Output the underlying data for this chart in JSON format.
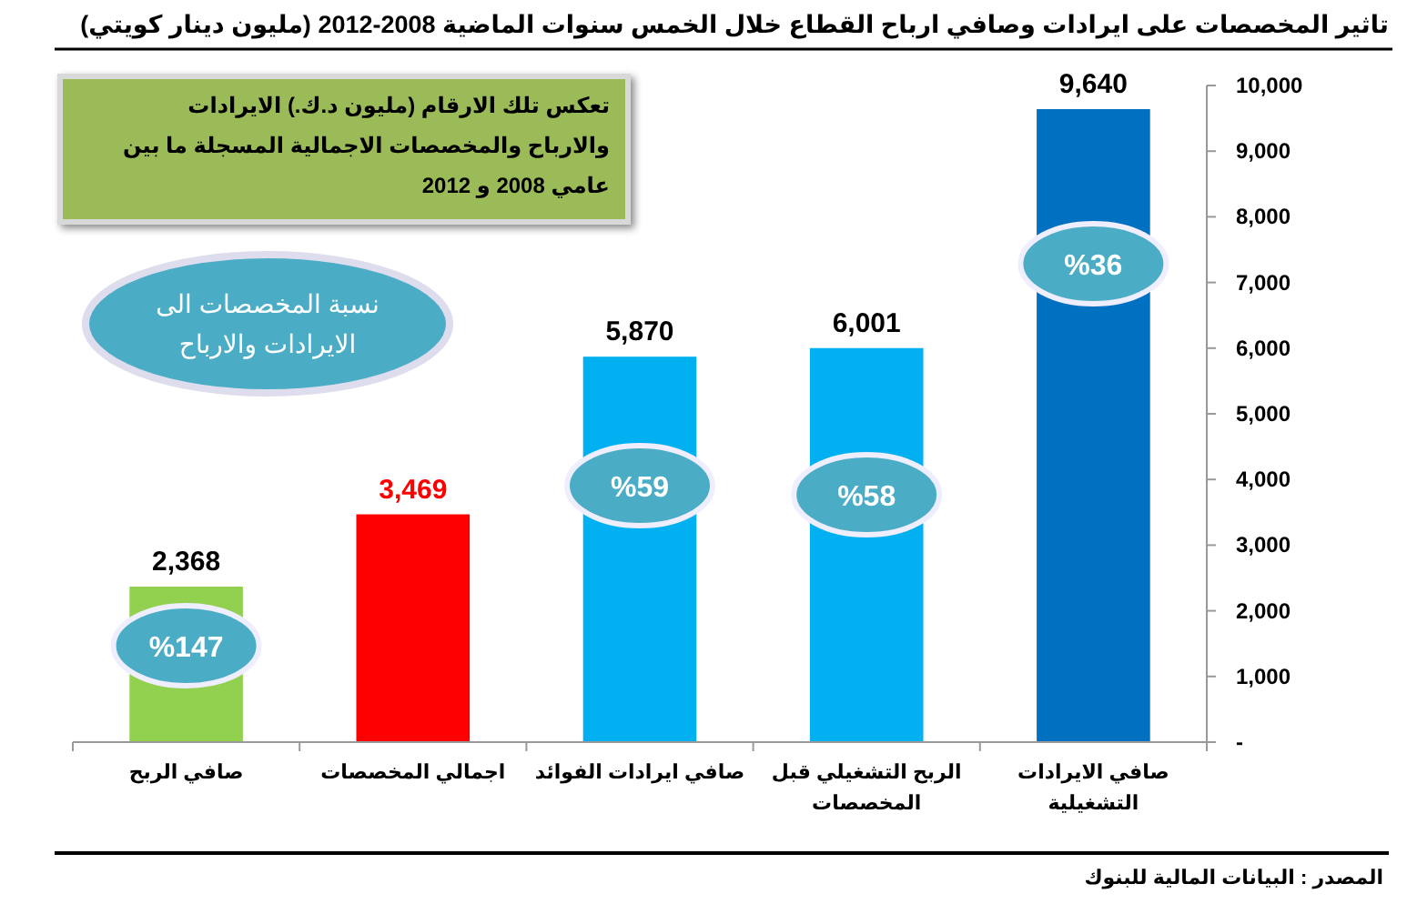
{
  "chart_data": {
    "type": "bar",
    "title": "تاثير المخصصات على ايرادات وصافي ارباح القطاع خلال الخمس سنوات الماضية 2008-2012 (مليون دينار كويتي)",
    "categories": [
      "صافي الربح",
      "اجمالي المخصصات",
      "صافي ايرادات الفوائد",
      "الربح التشغيلي قبل المخصصات",
      "صافي الايرادات التشغيلية"
    ],
    "values": [
      2368,
      3469,
      5870,
      6001,
      9640
    ],
    "colors": [
      "#92d050",
      "#ff0000",
      "#00b0f0",
      "#00b0f0",
      "#0070c0"
    ],
    "ylim": [
      0,
      10000
    ],
    "yticks": [
      {
        "value": 0,
        "label": "-"
      },
      {
        "value": 1000,
        "label": "1,000"
      },
      {
        "value": 2000,
        "label": "2,000"
      },
      {
        "value": 3000,
        "label": "3,000"
      },
      {
        "value": 4000,
        "label": "4,000"
      },
      {
        "value": 5000,
        "label": "5,000"
      },
      {
        "value": 6000,
        "label": "6,000"
      },
      {
        "value": 7000,
        "label": "7,000"
      },
      {
        "value": 8000,
        "label": "8,000"
      },
      {
        "value": 9000,
        "label": "9,000"
      },
      {
        "value": 10000,
        "label": "10,000"
      }
    ],
    "value_labels": [
      "2,368",
      "3,469",
      "5,870",
      "6,001",
      "9,640"
    ],
    "grid": false,
    "annotations": [
      "%147",
      "%59",
      "%58",
      "%36",
      "تعكس تلك الارقام (مليون د.ك.) الايرادات والارباح والمخصصات الاجمالية المسجلة ما بين عامي 2008 و 2012",
      "نسبة المخصصات الى الايرادات والارباح",
      "المصدر : البيانات المالية للبنوك"
    ]
  }
}
